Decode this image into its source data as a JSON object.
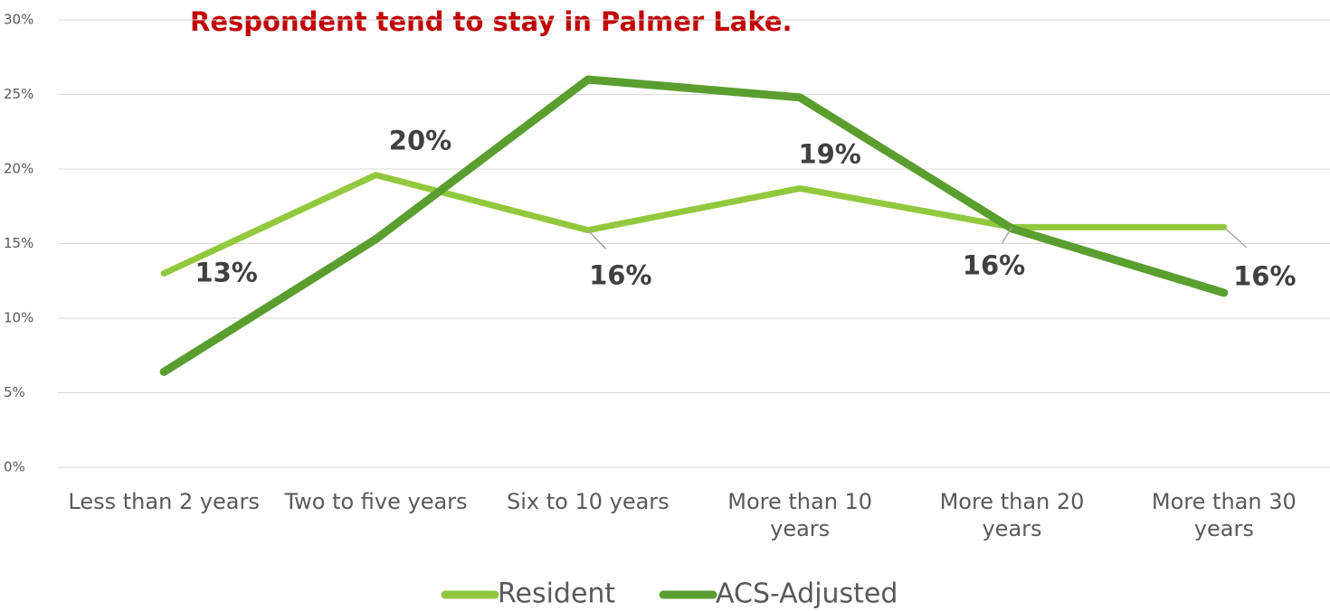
{
  "chart_data": {
    "type": "line",
    "title": "Respondent tend to stay in Palmer Lake.",
    "categories": [
      "Less than 2 years",
      "Two to five years",
      "Six to 10 years",
      "More than 10 years",
      "More than 20 years",
      "More than 30 years"
    ],
    "series": [
      {
        "name": "Resident",
        "color": "#92c83e",
        "values": [
          13.0,
          19.6,
          15.9,
          18.7,
          16.1,
          16.1
        ],
        "value_labels": [
          "13%",
          "20%",
          "16%",
          "19%",
          "16%",
          "16%"
        ]
      },
      {
        "name": "ACS-Adjusted",
        "color": "#5a9e2f",
        "values": [
          6.4,
          15.3,
          26.0,
          24.8,
          16.0,
          11.7
        ]
      }
    ],
    "ylim": [
      0,
      30
    ],
    "yticks": [
      {
        "value": 0,
        "label": "0%"
      },
      {
        "value": 5,
        "label": "5%"
      },
      {
        "value": 10,
        "label": "10%"
      },
      {
        "value": 15,
        "label": "15%"
      },
      {
        "value": 20,
        "label": "20%"
      },
      {
        "value": 25,
        "label": "25%"
      },
      {
        "value": 30,
        "label": "30%"
      }
    ],
    "grid": true,
    "legend": "bottom"
  }
}
